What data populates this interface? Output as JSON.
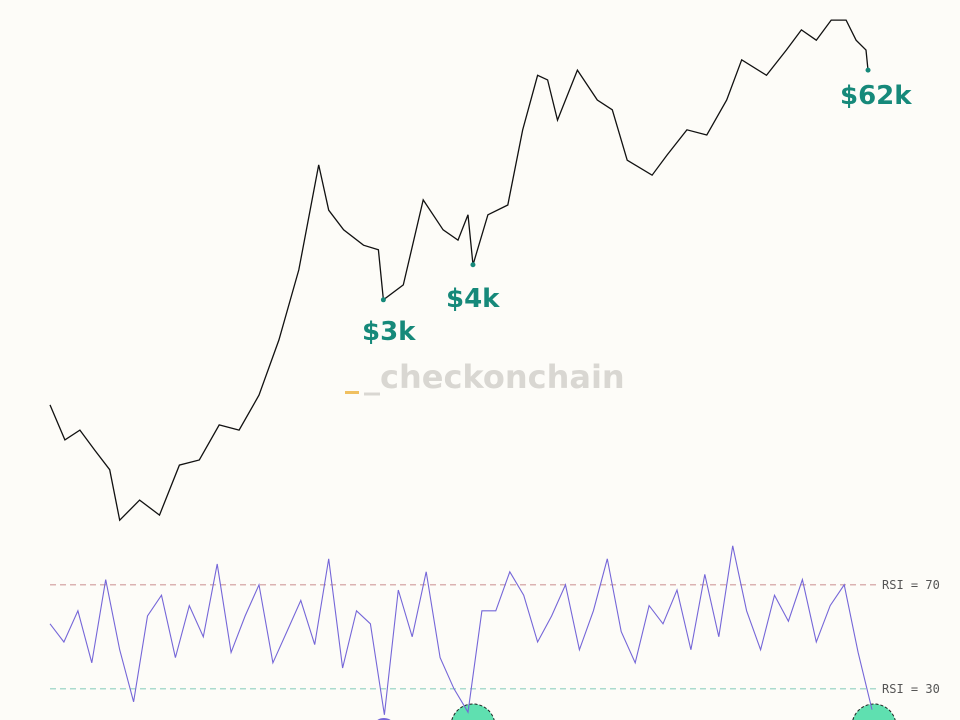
{
  "chart_data": [
    {
      "type": "line",
      "watermark": "_checkonchain",
      "annotations": [
        "$3k",
        "$4k",
        "$62k"
      ],
      "xlim": [
        0,
        830
      ],
      "ylim": [
        0,
        100
      ],
      "x": [
        0,
        15,
        30,
        45,
        60,
        70,
        90,
        110,
        130,
        150,
        170,
        190,
        210,
        230,
        250,
        270,
        280,
        295,
        315,
        330,
        335,
        355,
        375,
        395,
        410,
        420,
        425,
        440,
        460,
        475,
        490,
        500,
        510,
        530,
        550,
        565,
        580,
        605,
        620,
        640,
        660,
        680,
        695,
        720,
        740,
        755,
        770,
        785,
        800,
        810,
        820,
        822
      ],
      "series": [
        {
          "color": "#111111",
          "values": [
            24.3,
            17.5,
            19.4,
            15.5,
            11.7,
            1.9,
            5.8,
            2.9,
            12.6,
            13.6,
            20.4,
            19.4,
            26.2,
            36.9,
            50.5,
            70.9,
            62.1,
            58.3,
            55.3,
            54.4,
            44.7,
            47.6,
            64.1,
            58.3,
            56.3,
            61.2,
            51.5,
            61.2,
            63.1,
            77.7,
            88.3,
            87.4,
            79.6,
            89.3,
            83.5,
            81.6,
            71.8,
            68.9,
            72.8,
            77.7,
            76.7,
            83.5,
            91.3,
            88.3,
            93.2,
            97.1,
            95.1,
            99.0,
            99.0,
            95.1,
            93.2,
            89.3
          ]
        }
      ]
    },
    {
      "type": "line",
      "xlim": [
        0,
        830
      ],
      "ylim": [
        18,
        93
      ],
      "x": [
        0,
        14,
        28,
        42,
        56,
        70,
        84,
        98,
        112,
        126,
        140,
        154,
        168,
        182,
        196,
        210,
        224,
        238,
        252,
        266,
        280,
        294,
        308,
        322,
        336,
        350,
        364,
        378,
        392,
        406,
        420,
        434,
        448,
        462,
        476,
        490,
        504,
        518,
        532,
        546,
        560,
        574,
        588,
        602,
        616,
        630,
        644,
        658,
        672,
        686,
        700,
        714,
        728,
        742,
        756,
        770,
        784,
        798,
        812,
        826
      ],
      "series": [
        {
          "color": "#7566d8",
          "values": [
            55,
            48,
            60,
            40,
            72,
            45,
            25,
            58,
            66,
            42,
            62,
            50,
            78,
            44,
            58,
            70,
            40,
            52,
            64,
            47,
            80,
            38,
            60,
            55,
            20,
            68,
            50,
            75,
            42,
            30,
            21,
            60,
            60,
            75,
            66,
            48,
            58,
            70,
            45,
            60,
            80,
            52,
            40,
            62,
            55,
            68,
            45,
            74,
            50,
            85,
            60,
            45,
            66,
            56,
            72,
            48,
            62,
            70,
            44,
            22
          ]
        }
      ],
      "reference_lines": [
        {
          "value": 70,
          "label": "RSI = 70",
          "color": "#d09a9a"
        },
        {
          "value": 30,
          "label": "RSI = 30",
          "color": "#8fd0c0"
        }
      ]
    }
  ]
}
